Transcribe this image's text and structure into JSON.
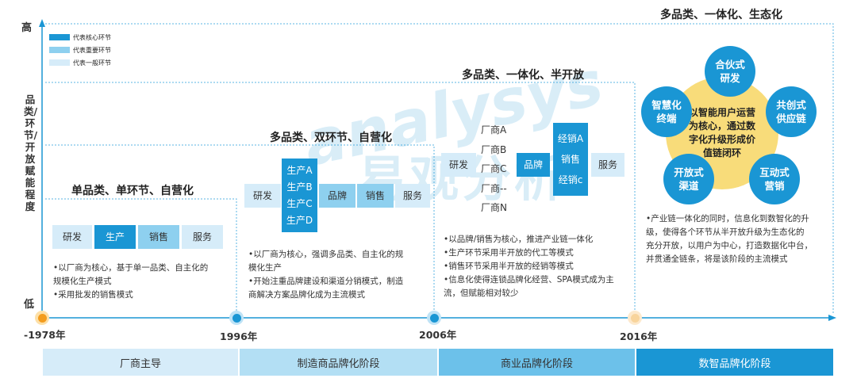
{
  "yaxis": {
    "high": "高",
    "low": "低",
    "label": "品类/环节/开放赋能程度"
  },
  "legend": [
    {
      "label": "代表核心环节",
      "color": "#1a96d4"
    },
    {
      "label": "代表重要环节",
      "color": "#8ed0ef"
    },
    {
      "label": "代表一般环节",
      "color": "#d6ecf9"
    }
  ],
  "watermark": {
    "en": "analysys",
    "cn": "易观分析"
  },
  "years": [
    "-1978年",
    "1996年",
    "2006年",
    "2016年"
  ],
  "stages": [
    {
      "title": "单品类、单环节、自营化",
      "boxes": [
        "研发",
        "生产",
        "销售",
        "服务"
      ],
      "desc": [
        "•以厂商为核心，基于单一品类、自主化的",
        "规模化生产模式",
        "•采用批发的销售模式"
      ]
    },
    {
      "title": "多品类、双环节、自营化",
      "boxes": [
        "研发",
        "品牌",
        "销售",
        "服务"
      ],
      "stack": [
        "生产A",
        "生产B",
        "生产C",
        "生产D"
      ],
      "desc": [
        "•以厂商为核心，强调多品类、自主化的规",
        "模化生产",
        "•开始注重品牌建设和渠道分销模式，制造",
        "商解决方案品牌化成为主流模式"
      ]
    },
    {
      "title": "多品类、一体化、半开放",
      "boxes": [
        "研发",
        "品牌",
        "服务"
      ],
      "vendors": [
        "厂商A",
        "厂商B",
        "厂商C",
        "厂商--",
        "厂商N"
      ],
      "stack": [
        "经销A",
        "销售",
        "经销c"
      ],
      "desc": [
        "•以品牌/销售为核心，推进产业链一体化",
        "•生产环节采用半开放的代工等模式",
        "•销售环节采用半开放的经销等模式",
        "•信息化使得连锁品牌化经营、SPA模式成为主",
        "流，但赋能相对较少"
      ]
    },
    {
      "title": "多品类、一体化、生态化",
      "center": "以智能用户运营为核心，通过数字化升级形成价值链闭环",
      "nodes": [
        "合伙式研发",
        "共创式供应链",
        "互动式营销",
        "开放式渠道",
        "智慧化终端"
      ],
      "desc": [
        "•产业链一体化的同时，信息化到数智化的升",
        "级，使得各个环节从半开放升级为生态化的",
        "充分开放，以用户为中心，打造数据化中台，",
        "并贯通全链条，将是该阶段的主流模式"
      ]
    }
  ],
  "phases": [
    {
      "label": "厂商主导",
      "color": "#d6ecf9"
    },
    {
      "label": "制造商品牌化阶段",
      "color": "#b3dff4"
    },
    {
      "label": "商业品牌化阶段",
      "color": "#6cc1ea"
    },
    {
      "label": "数智品牌化阶段",
      "color": "#1a96d4"
    }
  ]
}
